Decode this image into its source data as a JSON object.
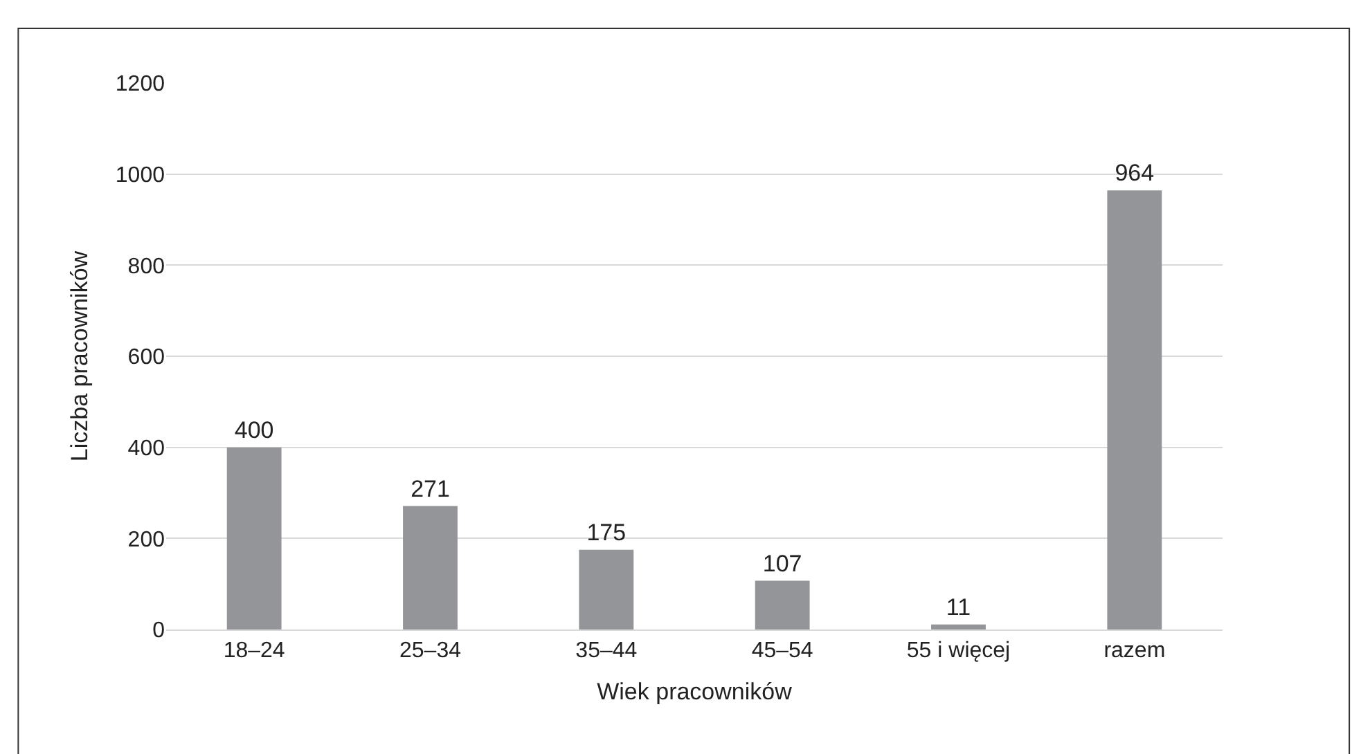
{
  "chart_data": {
    "type": "bar",
    "xlabel": "Wiek pracowników",
    "ylabel": "Liczba pracowników",
    "categories": [
      "18–24",
      "25–34",
      "35–44",
      "45–54",
      "55 i więcej",
      "razem"
    ],
    "values": [
      400,
      271,
      175,
      107,
      11,
      964
    ],
    "color": "#939598",
    "ylim": [
      0,
      1200
    ],
    "yticks": [
      0,
      200,
      400,
      600,
      800,
      1000,
      1200
    ],
    "grid": "y",
    "data_labels": true
  }
}
